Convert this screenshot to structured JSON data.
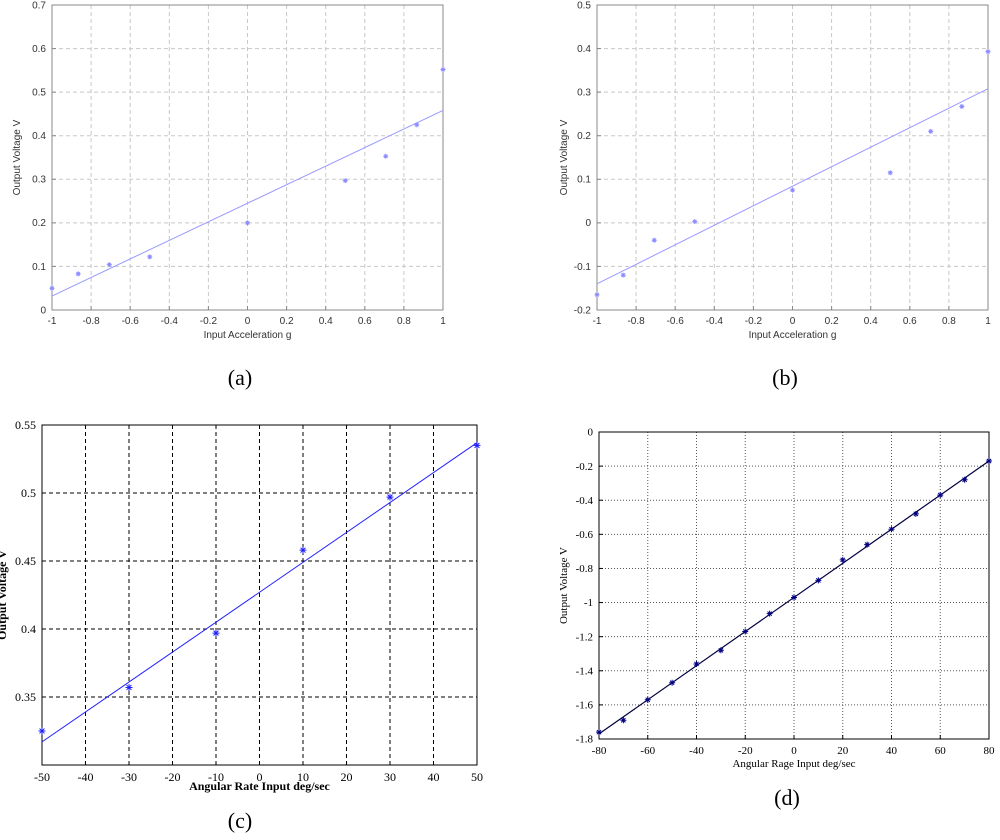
{
  "chart_data": [
    {
      "type": "scatter",
      "caption": "(a)",
      "xlabel": "Input Acceleration  g",
      "ylabel": "Output Voltage  V",
      "xlim": [
        -1,
        1
      ],
      "ylim": [
        0,
        0.7
      ],
      "xticks": [
        -1,
        -0.8,
        -0.6,
        -0.4,
        -0.2,
        0,
        0.2,
        0.4,
        0.6,
        0.8,
        1
      ],
      "yticks": [
        0,
        0.1,
        0.2,
        0.3,
        0.4,
        0.5,
        0.6,
        0.7
      ],
      "xtick_labels": [
        "-1",
        "-0.8",
        "-0.6",
        "-0.4",
        "-0.2",
        "0",
        "0.2",
        "0.4",
        "0.6",
        "0.8",
        "1"
      ],
      "ytick_labels": [
        "0",
        "0.1",
        "0.2",
        "0.3",
        "0.4",
        "0.5",
        "0.6",
        "0.7"
      ],
      "grid": true,
      "grid_style": "dashed",
      "marker_color": "#8c8cff",
      "line_color": "#9999ff",
      "points": {
        "x": [
          -1,
          -0.866,
          -0.707,
          -0.5,
          0,
          0.5,
          0.707,
          0.866,
          1
        ],
        "y": [
          0.05,
          0.083,
          0.104,
          0.122,
          0.2,
          0.297,
          0.353,
          0.425,
          0.552
        ]
      },
      "fit": {
        "x": [
          -1,
          1
        ],
        "y": [
          0.032,
          0.458
        ]
      }
    },
    {
      "type": "scatter",
      "caption": "(b)",
      "xlabel": "Input Acceleration  g",
      "ylabel": "Output Voltage  V",
      "xlim": [
        -1,
        1
      ],
      "ylim": [
        -0.2,
        0.5
      ],
      "xticks": [
        -1,
        -0.8,
        -0.6,
        -0.4,
        -0.2,
        0,
        0.2,
        0.4,
        0.6,
        0.8,
        1
      ],
      "yticks": [
        -0.2,
        -0.1,
        0,
        0.1,
        0.2,
        0.3,
        0.4,
        0.5
      ],
      "xtick_labels": [
        "-1",
        "-0.8",
        "-0.6",
        "-0.4",
        "-0.2",
        "0",
        "0.2",
        "0.4",
        "0.6",
        "0.8",
        "1"
      ],
      "ytick_labels": [
        "-0.2",
        "-0.1",
        "0",
        "0.1",
        "0.2",
        "0.3",
        "0.4",
        "0.5"
      ],
      "grid": true,
      "grid_style": "dashed",
      "marker_color": "#8c8cff",
      "line_color": "#9999ff",
      "points": {
        "x": [
          -1,
          -0.866,
          -0.707,
          -0.5,
          0,
          0.5,
          0.707,
          0.866,
          1
        ],
        "y": [
          -0.165,
          -0.12,
          -0.04,
          0.003,
          0.075,
          0.115,
          0.21,
          0.267,
          0.393
        ]
      },
      "fit": {
        "x": [
          -1,
          1
        ],
        "y": [
          -0.14,
          0.308
        ]
      }
    },
    {
      "type": "scatter",
      "caption": "(c)",
      "xlabel": "Angular Rate Input  deg/sec",
      "ylabel": "Output Voltage  V",
      "xlim": [
        -50,
        50
      ],
      "ylim": [
        0.3,
        0.55
      ],
      "xticks": [
        -50,
        -40,
        -30,
        -20,
        -10,
        0,
        10,
        20,
        30,
        40,
        50
      ],
      "yticks": [
        0.35,
        0.4,
        0.45,
        0.5,
        0.55
      ],
      "xtick_labels": [
        "-50",
        "-40",
        "-30",
        "-20",
        "-10",
        "0",
        "10",
        "20",
        "30",
        "40",
        "50"
      ],
      "ytick_labels": [
        "0.35",
        "0.4",
        "0.45",
        "0.5",
        "0.55"
      ],
      "grid": true,
      "grid_style": "dashed",
      "marker_color": "#2020ff",
      "line_color": "#2020ff",
      "points": {
        "x": [
          -50,
          -30,
          -10,
          10,
          30,
          50
        ],
        "y": [
          0.325,
          0.357,
          0.397,
          0.458,
          0.497,
          0.535
        ]
      },
      "fit": {
        "x": [
          -50,
          50
        ],
        "y": [
          0.317,
          0.537
        ]
      }
    },
    {
      "type": "scatter",
      "caption": "(d)",
      "xlabel": "Angular Rage Input  deg/sec",
      "ylabel": "Output Voltage  V",
      "xlim": [
        -80,
        80
      ],
      "ylim": [
        -1.8,
        0
      ],
      "xticks": [
        -80,
        -60,
        -40,
        -20,
        0,
        20,
        40,
        60,
        80
      ],
      "yticks": [
        -1.8,
        -1.6,
        -1.4,
        -1.2,
        -1,
        -0.8,
        -0.6,
        -0.4,
        -0.2,
        0
      ],
      "xtick_labels": [
        "-80",
        "-60",
        "-40",
        "-20",
        "0",
        "20",
        "40",
        "60",
        "80"
      ],
      "ytick_labels": [
        "-1.8",
        "-1.6",
        "-1.4",
        "-1.2",
        "-1",
        "-0.8",
        "-0.6",
        "-0.4",
        "-0.2",
        "0"
      ],
      "grid": true,
      "grid_style": "dotted",
      "marker_color": "#000080",
      "line_color": "#000040",
      "points": {
        "x": [
          -80,
          -70,
          -60,
          -50,
          -40,
          -30,
          -20,
          -10,
          0,
          10,
          20,
          30,
          40,
          50,
          60,
          70,
          80
        ],
        "y": [
          -1.76,
          -1.69,
          -1.57,
          -1.47,
          -1.36,
          -1.28,
          -1.17,
          -1.065,
          -0.97,
          -0.87,
          -0.75,
          -0.66,
          -0.57,
          -0.48,
          -0.37,
          -0.28,
          -0.17
        ]
      },
      "fit": {
        "x": [
          -80,
          80
        ],
        "y": [
          -1.77,
          -0.17
        ]
      }
    }
  ]
}
